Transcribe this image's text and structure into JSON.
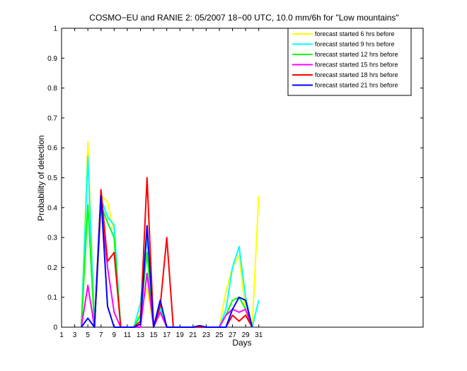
{
  "chart_data": {
    "type": "line",
    "title": "COSMO−EU and RANIE 2: 05/2007 18−00 UTC, 10.0 mm/6h for \"Low mountains\"",
    "xlabel": "Days",
    "ylabel": "Probability of detection",
    "xlim": [
      1,
      56
    ],
    "ylim": [
      0,
      1
    ],
    "x_ticks": [
      1,
      3,
      5,
      7,
      9,
      11,
      13,
      15,
      17,
      19,
      21,
      23,
      25,
      27,
      29,
      31
    ],
    "y_ticks": [
      0,
      0.1,
      0.2,
      0.3,
      0.4,
      0.5,
      0.6,
      0.7,
      0.8,
      0.9,
      1
    ],
    "y_tick_labels": [
      "0",
      "0.1",
      "0.2",
      "0.3",
      "0.4",
      "0.5",
      "0.6",
      "0.7",
      "0.8",
      "0.9",
      "1"
    ],
    "grid": false,
    "legend_position": "top-right",
    "series": [
      {
        "name": "forecast started 6 hrs before",
        "color": "#ffff00",
        "points": [
          [
            4,
            0
          ],
          [
            5,
            0.62
          ],
          [
            6,
            0
          ],
          [
            7,
            0.44
          ],
          [
            8,
            0.42
          ],
          [
            9,
            0.32
          ],
          [
            10,
            0
          ],
          [
            11,
            0
          ],
          [
            12,
            0
          ],
          [
            13,
            0.05
          ],
          [
            14,
            0.13
          ],
          [
            15,
            0
          ],
          [
            16,
            0.05
          ],
          [
            17,
            0
          ],
          [
            18,
            0
          ],
          [
            19,
            0
          ],
          [
            20,
            0
          ],
          [
            21,
            0
          ],
          [
            22,
            0
          ],
          [
            23,
            0
          ],
          [
            24,
            0
          ],
          [
            25,
            0
          ],
          [
            26,
            0.12
          ],
          [
            27,
            0.2
          ],
          [
            28,
            0.24
          ],
          [
            29,
            0.05
          ],
          [
            30,
            0
          ],
          [
            31,
            0.44
          ]
        ]
      },
      {
        "name": "forecast started 9 hrs before",
        "color": "#00ffff",
        "points": [
          [
            4,
            0
          ],
          [
            5,
            0.57
          ],
          [
            6,
            0
          ],
          [
            7,
            0.43
          ],
          [
            8,
            0.37
          ],
          [
            9,
            0.34
          ],
          [
            10,
            0
          ],
          [
            11,
            0
          ],
          [
            12,
            0
          ],
          [
            13,
            0.08
          ],
          [
            14,
            0.3
          ],
          [
            15,
            0
          ],
          [
            16,
            0.06
          ],
          [
            17,
            0
          ],
          [
            18,
            0
          ],
          [
            19,
            0
          ],
          [
            20,
            0
          ],
          [
            21,
            0
          ],
          [
            22,
            0.005
          ],
          [
            23,
            0
          ],
          [
            24,
            0
          ],
          [
            25,
            0
          ],
          [
            26,
            0.06
          ],
          [
            27,
            0.2
          ],
          [
            28,
            0.27
          ],
          [
            29,
            0.1
          ],
          [
            30,
            0
          ],
          [
            31,
            0.09
          ]
        ]
      },
      {
        "name": "forecast started 12 hrs before",
        "color": "#00ff00",
        "points": [
          [
            4,
            0
          ],
          [
            5,
            0.41
          ],
          [
            6,
            0
          ],
          [
            7,
            0.41
          ],
          [
            8,
            0.35
          ],
          [
            9,
            0.3
          ],
          [
            10,
            0
          ],
          [
            11,
            0
          ],
          [
            12,
            0
          ],
          [
            13,
            0.04
          ],
          [
            14,
            0.25
          ],
          [
            15,
            0
          ],
          [
            16,
            0.08
          ],
          [
            17,
            0
          ],
          [
            18,
            0
          ],
          [
            19,
            0
          ],
          [
            20,
            0
          ],
          [
            21,
            0
          ],
          [
            22,
            0
          ],
          [
            23,
            0
          ],
          [
            24,
            0
          ],
          [
            25,
            0
          ],
          [
            26,
            0.04
          ],
          [
            27,
            0.09
          ],
          [
            28,
            0.1
          ],
          [
            29,
            0.06
          ],
          [
            30,
            0
          ]
        ]
      },
      {
        "name": "forecast started 15 hrs before",
        "color": "#ff00ff",
        "points": [
          [
            4,
            0
          ],
          [
            5,
            0.14
          ],
          [
            6,
            0
          ],
          [
            7,
            0.42
          ],
          [
            8,
            0.2
          ],
          [
            9,
            0.05
          ],
          [
            10,
            0
          ],
          [
            11,
            0
          ],
          [
            12,
            0
          ],
          [
            13,
            0
          ],
          [
            14,
            0.18
          ],
          [
            15,
            0
          ],
          [
            16,
            0.05
          ],
          [
            17,
            0
          ],
          [
            18,
            0
          ],
          [
            19,
            0
          ],
          [
            20,
            0
          ],
          [
            21,
            0
          ],
          [
            22,
            0
          ],
          [
            23,
            0
          ],
          [
            24,
            0
          ],
          [
            25,
            0
          ],
          [
            26,
            0.04
          ],
          [
            27,
            0.06
          ],
          [
            28,
            0.05
          ],
          [
            29,
            0.06
          ],
          [
            30,
            0
          ]
        ]
      },
      {
        "name": "forecast started 18 hrs before",
        "color": "#ff0000",
        "points": [
          [
            6,
            0
          ],
          [
            7,
            0.46
          ],
          [
            8,
            0.22
          ],
          [
            9,
            0.25
          ],
          [
            10,
            0
          ],
          [
            11,
            0
          ],
          [
            12,
            0
          ],
          [
            13,
            0.02
          ],
          [
            14,
            0.5
          ],
          [
            15,
            0
          ],
          [
            16,
            0.07
          ],
          [
            17,
            0.3
          ],
          [
            18,
            0
          ],
          [
            19,
            0
          ],
          [
            20,
            0
          ],
          [
            21,
            0
          ],
          [
            22,
            0
          ],
          [
            23,
            0
          ],
          [
            24,
            0
          ],
          [
            25,
            0
          ],
          [
            26,
            0
          ],
          [
            27,
            0.04
          ],
          [
            28,
            0.02
          ],
          [
            29,
            0.04
          ],
          [
            30,
            0
          ]
        ]
      },
      {
        "name": "forecast started 21 hrs before",
        "color": "#0000ff",
        "points": [
          [
            4,
            0
          ],
          [
            5,
            0.03
          ],
          [
            6,
            0
          ],
          [
            7,
            0.44
          ],
          [
            8,
            0.07
          ],
          [
            9,
            0
          ],
          [
            10,
            0
          ],
          [
            11,
            0
          ],
          [
            12,
            0
          ],
          [
            13,
            0.01
          ],
          [
            14,
            0.34
          ],
          [
            15,
            0
          ],
          [
            16,
            0.09
          ],
          [
            17,
            0
          ],
          [
            18,
            0
          ],
          [
            19,
            0
          ],
          [
            20,
            0
          ],
          [
            21,
            0
          ],
          [
            22,
            0.005
          ],
          [
            23,
            0
          ],
          [
            24,
            0
          ],
          [
            25,
            0
          ],
          [
            26,
            0
          ],
          [
            27,
            0.06
          ],
          [
            28,
            0.1
          ],
          [
            29,
            0.09
          ],
          [
            30,
            0
          ]
        ]
      }
    ]
  }
}
